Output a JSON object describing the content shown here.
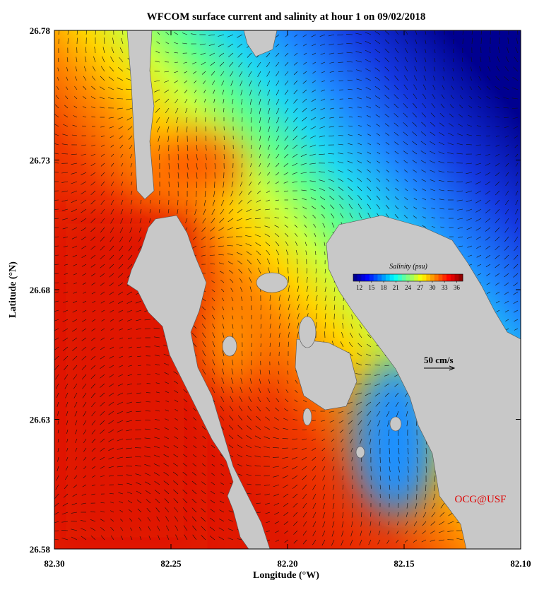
{
  "chart_data": {
    "type": "map",
    "title": "WFCOM surface current and salinity at hour 1 on 09/02/2018",
    "x_label": "Longitude (°W)",
    "y_label": "Latitude (°N)",
    "xlim": [
      82.3,
      82.1
    ],
    "xticks": [
      {
        "value": 82.3,
        "label": "82.30"
      },
      {
        "value": 82.25,
        "label": "82.25"
      },
      {
        "value": 82.2,
        "label": "82.20"
      },
      {
        "value": 82.15,
        "label": "82.15"
      },
      {
        "value": 82.1,
        "label": "82.10"
      }
    ],
    "ylim": [
      26.58,
      26.78
    ],
    "yticks": [
      26.58,
      26.63,
      26.68,
      26.73,
      26.78
    ],
    "colorbar": {
      "title": "Salinity (psu)",
      "lim": [
        10.5,
        37.5
      ],
      "ticks": [
        12,
        15,
        18,
        21,
        24,
        27,
        30,
        33,
        36
      ]
    },
    "scale_label": "50 cm/s",
    "credit": "OCG@USF"
  }
}
